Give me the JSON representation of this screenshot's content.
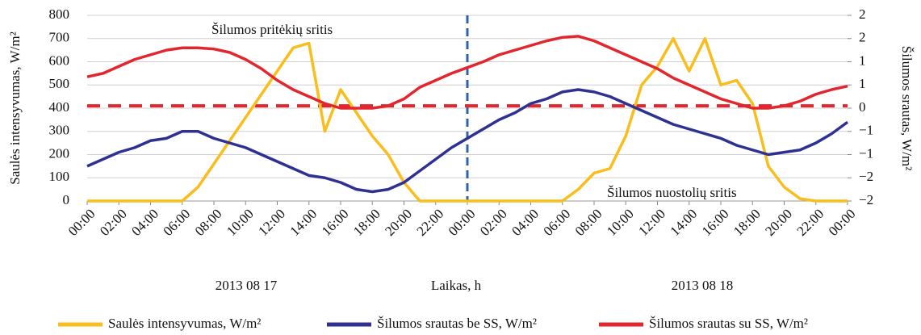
{
  "chart_data": {
    "type": "line",
    "annotations": [
      "Šilumos pritėkių sritis",
      "Šilumos nuostolių sritis"
    ],
    "date_labels": [
      "2013 08 17",
      "2013 08 18"
    ],
    "xlabel": "Laikas, h",
    "ylabel": "Saulės intensyvumas, W/m²",
    "y2label": "Šilumos srautas, W/m²",
    "x": [
      0,
      1,
      2,
      3,
      4,
      5,
      6,
      7,
      8,
      9,
      10,
      11,
      12,
      13,
      14,
      15,
      16,
      17,
      18,
      19,
      20,
      21,
      22,
      23,
      24,
      25,
      26,
      27,
      28,
      29,
      30,
      31,
      32,
      33,
      34,
      35,
      36,
      37,
      38,
      39,
      40,
      41,
      42,
      43,
      44,
      45,
      46,
      47,
      48
    ],
    "xlim": [
      0,
      48
    ],
    "xticks": [
      {
        "value": 0,
        "label": "00:00"
      },
      {
        "value": 2,
        "label": "02:00"
      },
      {
        "value": 4,
        "label": "04:00"
      },
      {
        "value": 6,
        "label": "06:00"
      },
      {
        "value": 8,
        "label": "08:00"
      },
      {
        "value": 10,
        "label": "10:00"
      },
      {
        "value": 12,
        "label": "12:00"
      },
      {
        "value": 14,
        "label": "14:00"
      },
      {
        "value": 16,
        "label": "16:00"
      },
      {
        "value": 18,
        "label": "18:00"
      },
      {
        "value": 20,
        "label": "20:00"
      },
      {
        "value": 22,
        "label": "22:00"
      },
      {
        "value": 24,
        "label": "00:00"
      },
      {
        "value": 26,
        "label": "02:00"
      },
      {
        "value": 28,
        "label": "04:00"
      },
      {
        "value": 30,
        "label": "06:00"
      },
      {
        "value": 32,
        "label": "08:00"
      },
      {
        "value": 34,
        "label": "10:00"
      },
      {
        "value": 36,
        "label": "12:00"
      },
      {
        "value": 38,
        "label": "14:00"
      },
      {
        "value": 40,
        "label": "16:00"
      },
      {
        "value": 42,
        "label": "18:00"
      },
      {
        "value": 44,
        "label": "20:00"
      },
      {
        "value": 46,
        "label": "22:00"
      },
      {
        "value": 48,
        "label": "00:00"
      }
    ],
    "ylim": [
      0,
      800
    ],
    "yticks": [
      0,
      100,
      200,
      300,
      400,
      500,
      600,
      700,
      800
    ],
    "y2lim": [
      -2,
      2
    ],
    "y2ticks": [
      {
        "value": -2,
        "label": "−2"
      },
      {
        "value": -1.5,
        "label": "−2"
      },
      {
        "value": -1,
        "label": "−1"
      },
      {
        "value": -0.5,
        "label": "−1"
      },
      0,
      {
        "value": 0.5,
        "label": "1"
      },
      {
        "value": 1,
        "label": "1"
      },
      {
        "value": 1.5,
        "label": "2"
      },
      {
        "value": 2,
        "label": "2"
      }
    ],
    "grid": true,
    "vline_x": 24,
    "vline_color": "#2e63ad",
    "reference_y2": 0.05,
    "reference_color": "#e3262d",
    "series": [
      {
        "name": "Saulės intensyvumas, W/m²",
        "color": "#f9bd1c",
        "values": [
          0,
          0,
          0,
          0,
          0,
          0,
          0,
          60,
          160,
          260,
          360,
          460,
          560,
          660,
          680,
          300,
          480,
          380,
          280,
          200,
          80,
          0,
          0,
          0,
          0,
          0,
          0,
          0,
          0,
          0,
          0,
          50,
          120,
          140,
          280,
          500,
          580,
          700,
          560,
          700,
          500,
          520,
          420,
          150,
          60,
          10,
          0,
          0,
          0
        ]
      },
      {
        "name": "Šilumos srautas be SS, W/m²",
        "color": "#2e3192",
        "axis": "y2",
        "values": [
          -1.25,
          -1.1,
          -0.95,
          -0.85,
          -0.7,
          -0.65,
          -0.5,
          -0.5,
          -0.65,
          -0.75,
          -0.85,
          -1,
          -1.15,
          -1.3,
          -1.45,
          -1.5,
          -1.6,
          -1.75,
          -1.8,
          -1.75,
          -1.6,
          -1.35,
          -1.1,
          -0.85,
          -0.65,
          -0.45,
          -0.25,
          -0.1,
          0.1,
          0.2,
          0.35,
          0.4,
          0.35,
          0.25,
          0.1,
          -0.05,
          -0.2,
          -0.35,
          -0.45,
          -0.55,
          -0.65,
          -0.8,
          -0.9,
          -1,
          -0.95,
          -0.9,
          -0.75,
          -0.55,
          -0.3
        ]
      },
      {
        "name": "Šilumos srautas su SS, W/m²",
        "color": "#e3262d",
        "axis": "y2",
        "values": [
          0.675,
          0.75,
          0.9,
          1.05,
          1.15,
          1.25,
          1.3,
          1.3,
          1.275,
          1.2,
          1.05,
          0.85,
          0.6,
          0.4,
          0.25,
          0.1,
          0,
          0,
          0,
          0.05,
          0.2,
          0.45,
          0.6,
          0.75,
          0.875,
          1,
          1.15,
          1.25,
          1.35,
          1.45,
          1.525,
          1.55,
          1.45,
          1.3,
          1.15,
          1,
          0.85,
          0.65,
          0.5,
          0.35,
          0.2,
          0.1,
          0,
          0,
          0.05,
          0.15,
          0.3,
          0.4,
          0.475
        ]
      }
    ]
  }
}
